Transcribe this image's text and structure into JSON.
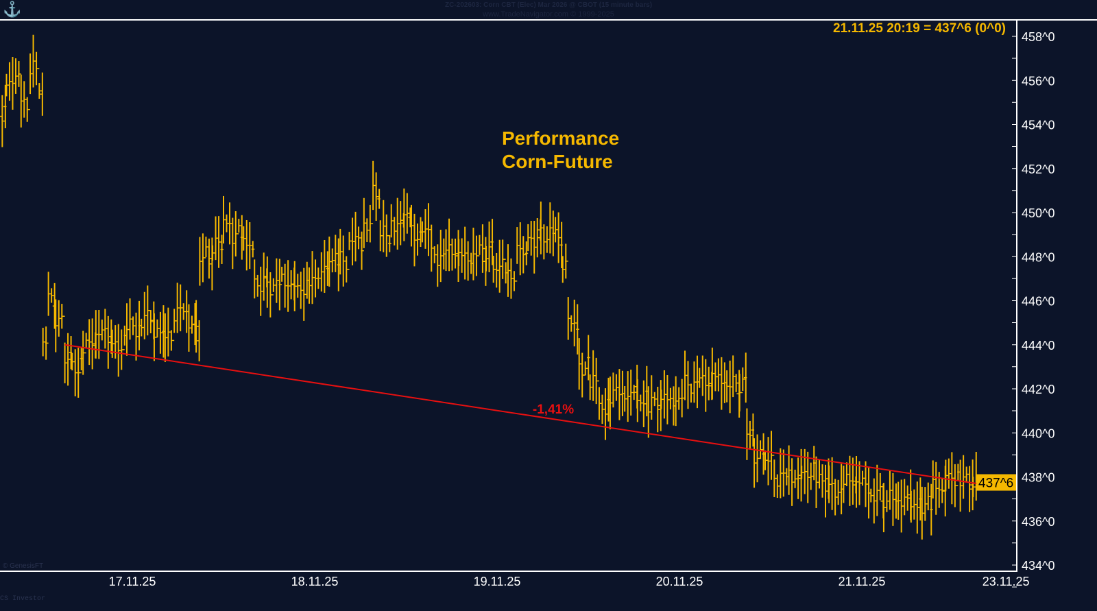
{
  "header": {
    "title": "ZC-202603:  Corn CBT (Elec) Mar 2026 @ CBOT  (15 minute bars)",
    "copyright": "www.TradeNavigator.com © 1999-2025"
  },
  "footer": {
    "genesis": "© GenesisFT",
    "investor": "CS Investor"
  },
  "colors": {
    "background": "#0c1429",
    "price": "#f5b800",
    "trend": "#e81010",
    "axis": "#ffffff"
  },
  "chart_data": {
    "type": "line",
    "title": "Performance\nCorn-Future",
    "title_lines": [
      "Performance",
      "Corn-Future"
    ],
    "readout": "21.11.25 20:19 = 437^6 (0^0)",
    "last_price_label": "437^6",
    "last_price": 437.75,
    "ylim": [
      434,
      458
    ],
    "yticks": [
      {
        "v": 434,
        "label": "434^0"
      },
      {
        "v": 436,
        "label": "436^0"
      },
      {
        "v": 438,
        "label": "438^0"
      },
      {
        "v": 440,
        "label": "440^0"
      },
      {
        "v": 442,
        "label": "442^0"
      },
      {
        "v": 444,
        "label": "444^0"
      },
      {
        "v": 446,
        "label": "446^0"
      },
      {
        "v": 448,
        "label": "448^0"
      },
      {
        "v": 450,
        "label": "450^0"
      },
      {
        "v": 452,
        "label": "452^0"
      },
      {
        "v": 454,
        "label": "454^0"
      },
      {
        "v": 456,
        "label": "456^0"
      },
      {
        "v": 458,
        "label": "458^0"
      }
    ],
    "xticks": [
      {
        "x": 17,
        "label": "17.11.25"
      },
      {
        "x": 18,
        "label": "18.11.25"
      },
      {
        "x": 19,
        "label": "19.11.25"
      },
      {
        "x": 20,
        "label": "20.11.25"
      },
      {
        "x": 21,
        "label": "21.11.25"
      },
      {
        "x": 21.79,
        "label": "23.11.25"
      }
    ],
    "xlim": [
      16.27,
      21.84
    ],
    "series": [
      {
        "name": "ZC-202603",
        "x": [
          16.27,
          16.31,
          16.39,
          16.44,
          16.49,
          16.51,
          16.54,
          16.58,
          16.63,
          16.67,
          16.73,
          16.8,
          16.89,
          16.97,
          17.05,
          17.12,
          17.18,
          17.23,
          17.31,
          17.35,
          17.37,
          17.44,
          17.5,
          17.55,
          17.61,
          17.67,
          17.74,
          17.82,
          17.89,
          17.97,
          18.02,
          18.08,
          18.14,
          18.19,
          18.27,
          18.32,
          18.36,
          18.42,
          18.49,
          18.53,
          18.59,
          18.64,
          18.72,
          18.79,
          18.87,
          18.94,
          18.98,
          19.06,
          19.11,
          19.17,
          19.24,
          19.32,
          19.36,
          19.39,
          19.45,
          19.51,
          19.56,
          19.62,
          19.7,
          19.77,
          19.83,
          19.9,
          19.98,
          20.03,
          20.11,
          20.18,
          20.26,
          20.33,
          20.37,
          20.41,
          20.47,
          20.52,
          20.6,
          20.67,
          20.75,
          20.82,
          20.9,
          20.97,
          21.05,
          21.12,
          21.2,
          21.27,
          21.33,
          21.39,
          21.46,
          21.54,
          21.61
        ],
        "y": [
          454.5,
          456,
          455,
          456.5,
          455.5,
          444,
          446,
          445,
          443.5,
          443,
          444,
          444.5,
          444,
          444.8,
          445.2,
          444.5,
          444.3,
          445.5,
          445,
          444.5,
          448,
          448.5,
          449.5,
          449,
          448.5,
          446.8,
          446.7,
          446.8,
          446.6,
          446.8,
          447.4,
          447.8,
          447.8,
          448.7,
          449.5,
          450.8,
          449,
          449.5,
          450,
          449,
          449.3,
          448,
          448.2,
          448,
          448.2,
          448.3,
          447.5,
          447.2,
          448.2,
          448.8,
          449,
          448.8,
          447.5,
          445,
          443,
          442.3,
          441.2,
          441.8,
          441.8,
          441.5,
          441.3,
          441.5,
          441.6,
          442.2,
          442.3,
          442.5,
          442.2,
          442.2,
          440,
          439,
          438.7,
          438,
          438,
          438.2,
          437.8,
          437.4,
          437.8,
          437.7,
          437.2,
          437,
          437,
          436.8,
          436.7,
          437.5,
          438,
          437.8,
          437.6
        ]
      }
    ],
    "trendline": {
      "x": [
        16.63,
        21.63
      ],
      "y": [
        444.0,
        437.7
      ],
      "label": "-1,41%"
    }
  }
}
